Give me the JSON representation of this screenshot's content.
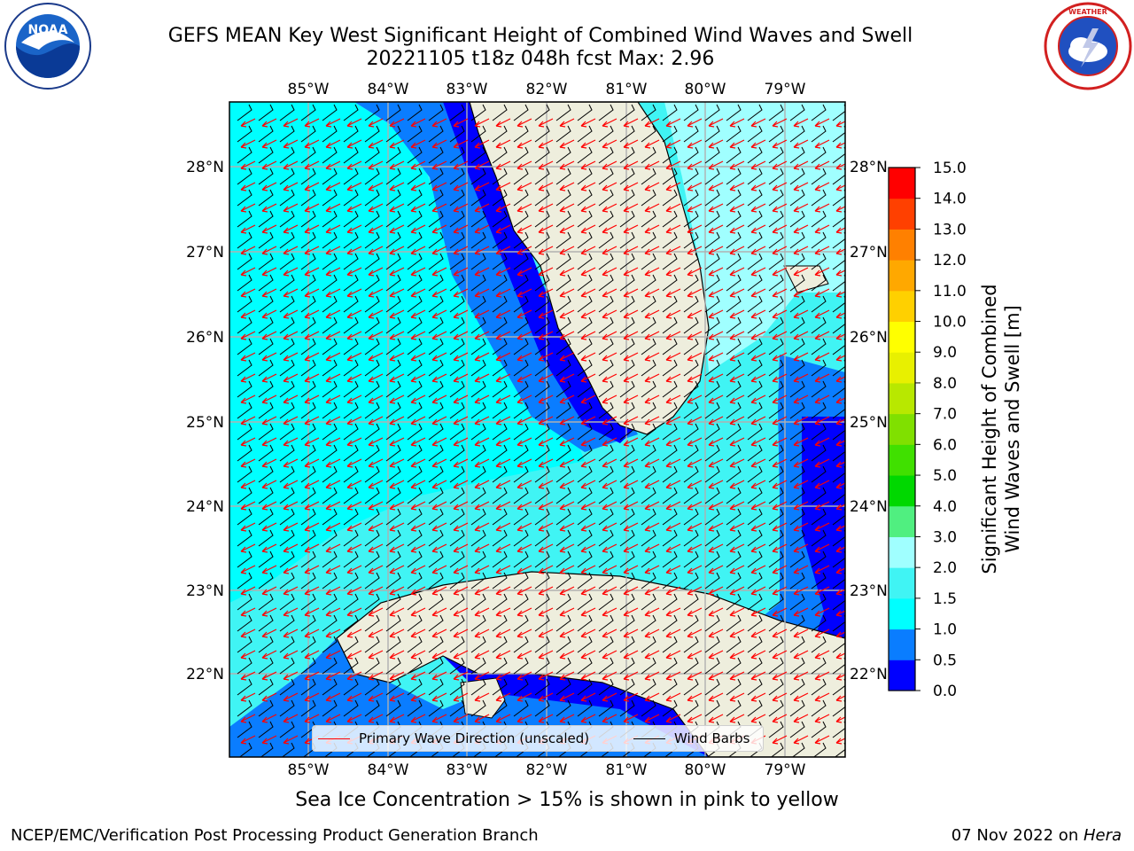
{
  "title": {
    "line1": "GEFS MEAN Key West Significant Height of Combined Wind Waves and Swell",
    "line2": "20221105 t18z 048h fcst   Max: 2.96"
  },
  "logos": {
    "left": {
      "name": "noaa-logo",
      "text": "NOAA",
      "ring_text": "NATIONAL OCEANIC AND ATMOSPHERIC ADMINISTRATION · U.S. DEPARTMENT OF COMMERCE"
    },
    "right": {
      "name": "nws-logo",
      "ring_text": "NATIONAL WEATHER SERVICE"
    }
  },
  "map": {
    "lon_labels": [
      "85°W",
      "84°W",
      "83°W",
      "82°W",
      "81°W",
      "80°W",
      "79°W"
    ],
    "lat_labels": [
      "28°N",
      "27°N",
      "26°N",
      "25°N",
      "24°N",
      "23°N",
      "22°N"
    ],
    "extent": {
      "lon_min": -86.0,
      "lon_max": -78.3,
      "lat_min": 21.0,
      "lat_max": 28.75
    },
    "grid": true,
    "land_color": "#eeeedd",
    "legend": {
      "wave_direction": "Primary Wave Direction (unscaled)",
      "wind_barbs": "Wind Barbs",
      "wave_color": "#ff0000",
      "barb_color": "#000000"
    }
  },
  "colorbar": {
    "label_line1": "Significant Height of Combined",
    "label_line2": "Wind Waves and Swell [m]",
    "ticks": [
      "0.0",
      "0.5",
      "1.0",
      "1.5",
      "2.0",
      "3.0",
      "4.0",
      "5.0",
      "6.0",
      "7.0",
      "8.0",
      "9.0",
      "10.0",
      "11.0",
      "12.0",
      "13.0",
      "14.0",
      "15.0"
    ],
    "colors": [
      "#0000ff",
      "#0a7dff",
      "#00ffff",
      "#40f4f4",
      "#a0ffff",
      "#50ef80",
      "#00d800",
      "#40e000",
      "#80e000",
      "#b8e800",
      "#e8f000",
      "#ffff00",
      "#ffd000",
      "#ffa800",
      "#ff8000",
      "#ff4000",
      "#ff0000"
    ]
  },
  "note": "Sea Ice Concentration > 15% is shown in pink to yellow",
  "footer": {
    "left": "NCEP/EMC/Verification Post Processing Product Generation Branch",
    "date": "07 Nov 2022 on ",
    "host": "Hera"
  }
}
